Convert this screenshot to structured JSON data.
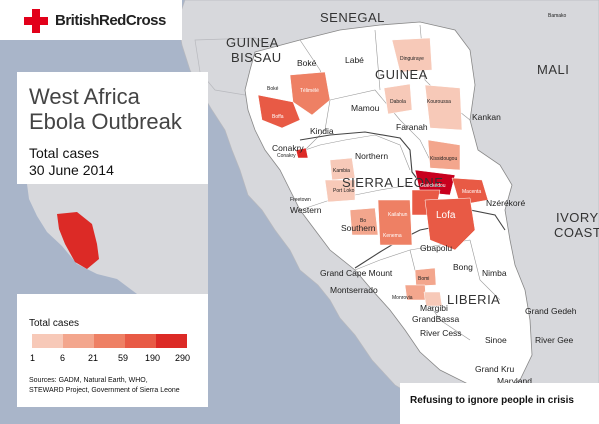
{
  "brand": {
    "name": "BritishRedCross",
    "color": "#e2001a"
  },
  "title": {
    "line1": "West Africa",
    "line2": "Ebola Outbreak"
  },
  "subtitle": {
    "line1": "Total cases",
    "line2": "30 June 2014"
  },
  "legend": {
    "title": "Total cases",
    "stops": [
      "1",
      "6",
      "21",
      "59",
      "190",
      "290"
    ],
    "colors": [
      "#f7c9b8",
      "#f3a68d",
      "#ee8064",
      "#e85a45",
      "#dc2a26"
    ]
  },
  "sources": {
    "line1": "Sources: GADM, Natural Earth, WHO,",
    "line2": "STEWARD Project, Government of Sierra Leone"
  },
  "tagline": "Refusing to ignore people in crisis",
  "countries": {
    "senegal": "SENEGAL",
    "guinea_bissau_1": "GUINEA",
    "guinea_bissau_2": "BISSAU",
    "guinea": "GUINEA",
    "mali": "MALI",
    "sierra_leone": "SIERRA LEONE",
    "liberia": "LIBERIA",
    "ivory_1": "IVORY",
    "ivory_2": "COAST"
  },
  "regions": {
    "boke": "Boké",
    "labe": "Labé",
    "mamou": "Mamou",
    "kindia": "Kindia",
    "faranah": "Faranah",
    "kankan": "Kankan",
    "conakry": "Conakry",
    "northern": "Northern",
    "western": "Western",
    "southern": "Southern",
    "eastern_lofa": "Lofa",
    "gbapolu": "Gbapolu",
    "bong": "Bong",
    "nimba": "Nimba",
    "nzerekore": "Nzérékoré",
    "grand_cape_mount": "Grand Cape Mount",
    "montserrado": "Montserrado",
    "margibi": "Margibi",
    "grand_bassa": "GrandBassa",
    "river_cess": "River Cess",
    "sinoe": "Sinoe",
    "river_gee": "River Gee",
    "grand_gedeh": "Grand Gedeh",
    "grand_kru": "Grand Kru",
    "maryland": "Maryland"
  },
  "small_labels": {
    "bamako": "Bamako",
    "dinguiraye": "Dinguiraye",
    "dabola": "Dabola",
    "kouroussa": "Kouroussa",
    "kissidougou": "Kissidougou",
    "gueckedou": "Guéckédou",
    "macenta": "Macenta",
    "boke_small": "Boké",
    "telimele": "Télimélé",
    "boffa": "Boffa",
    "kambia": "Kambia",
    "port_loko": "Port Loko",
    "freetown": "Freetown",
    "bo": "Bo",
    "kenema": "Kenema",
    "kailahun": "Kailahun",
    "bomi": "Bomi",
    "monrovia": "Monrovia",
    "conakry_small": "Conakry"
  }
}
